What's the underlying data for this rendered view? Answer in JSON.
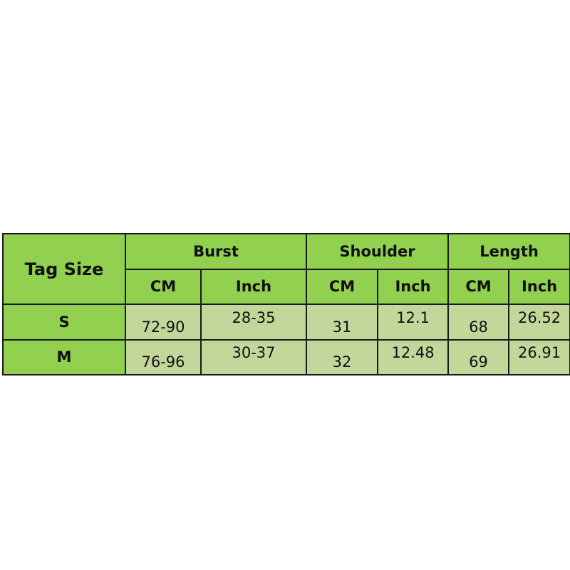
{
  "table": {
    "tag_header": "Tag Size",
    "groups": [
      "Burst",
      "Shoulder",
      "Length"
    ],
    "units": [
      "CM",
      "Inch",
      "CM",
      "Inch",
      "CM",
      "Inch"
    ],
    "rows": [
      {
        "size": "S",
        "values": [
          "72-90",
          "28-35",
          "31",
          "12.1",
          "68",
          "26.52"
        ]
      },
      {
        "size": "M",
        "values": [
          "76-96",
          "30-37",
          "32",
          "12.48",
          "69",
          "26.91"
        ]
      }
    ]
  },
  "colors": {
    "header_green": "#92d050",
    "data_cell": "#c4d79b"
  }
}
